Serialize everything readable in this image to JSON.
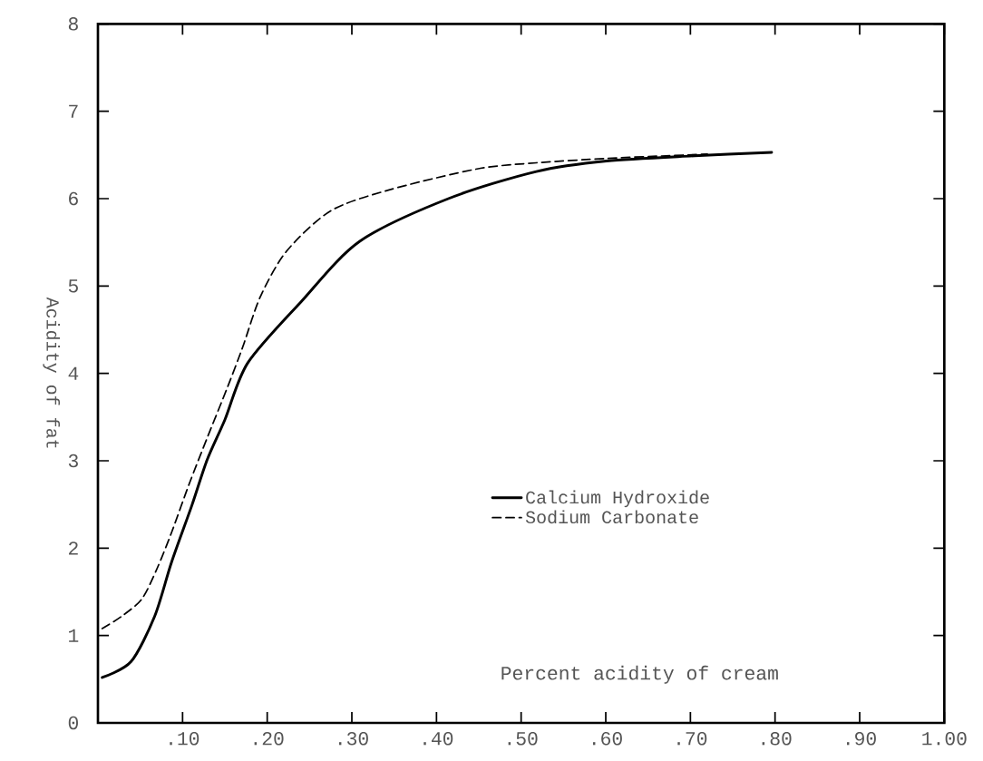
{
  "chart_data": {
    "type": "line",
    "xlabel": "Percent acidity of cream",
    "ylabel": "Acidity of fat",
    "xlim": [
      0,
      1
    ],
    "ylim": [
      0,
      8
    ],
    "xticks": [
      {
        "value": 0.1,
        "label": ".10"
      },
      {
        "value": 0.2,
        "label": ".20"
      },
      {
        "value": 0.3,
        "label": ".30"
      },
      {
        "value": 0.4,
        "label": ".40"
      },
      {
        "value": 0.5,
        "label": ".50"
      },
      {
        "value": 0.6,
        "label": ".60"
      },
      {
        "value": 0.7,
        "label": ".70"
      },
      {
        "value": 0.8,
        "label": ".80"
      },
      {
        "value": 0.9,
        "label": ".90"
      },
      {
        "value": 1.0,
        "label": "1.00"
      }
    ],
    "yticks": [
      0,
      1,
      2,
      3,
      4,
      5,
      6,
      7,
      8
    ],
    "legend": "bottom",
    "grid": false,
    "series": [
      {
        "name": "Calcium Hydroxide",
        "color": "#000000",
        "line_style": "solid",
        "x": [
          0.005,
          0.039,
          0.067,
          0.087,
          0.111,
          0.129,
          0.15,
          0.177,
          0.24,
          0.309,
          0.414,
          0.518,
          0.601,
          0.705,
          0.796
        ],
        "values": [
          0.52,
          0.7,
          1.22,
          1.84,
          2.49,
          3.01,
          3.47,
          4.12,
          4.82,
          5.51,
          6.0,
          6.31,
          6.43,
          6.49,
          6.53
        ]
      },
      {
        "name": "Sodium Carbonate",
        "color": "#000000",
        "line_style": "dashed",
        "x": [
          0.005,
          0.028,
          0.052,
          0.07,
          0.087,
          0.108,
          0.129,
          0.153,
          0.171,
          0.192,
          0.223,
          0.275,
          0.344,
          0.448,
          0.518,
          0.601,
          0.671,
          0.72
        ],
        "values": [
          1.08,
          1.22,
          1.42,
          1.77,
          2.18,
          2.74,
          3.26,
          3.84,
          4.3,
          4.88,
          5.4,
          5.86,
          6.1,
          6.34,
          6.41,
          6.46,
          6.49,
          6.51
        ]
      }
    ]
  }
}
